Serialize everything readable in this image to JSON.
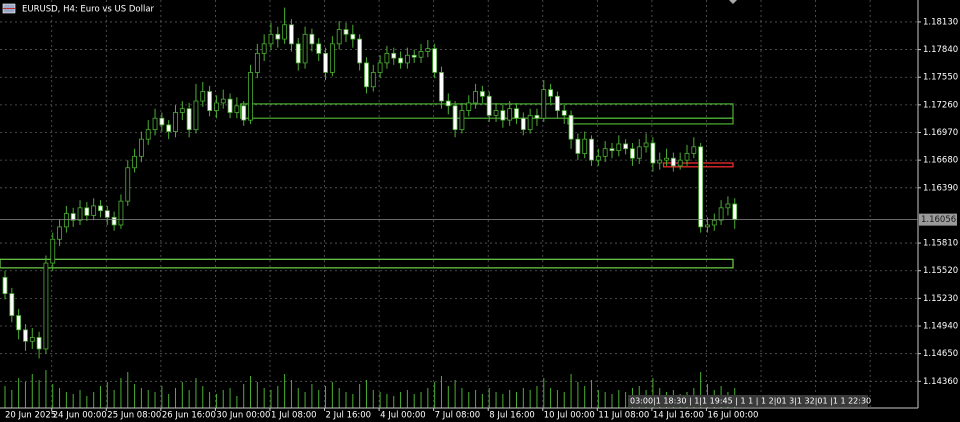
{
  "chart_data": {
    "type": "candlestick",
    "title": "EURUSD, H4:  Euro vs US Dollar",
    "annotation": "03:00|1 18:30 | 1|1 19:45 | 1 1 | 1 2|01 3|1 32|01 |1 1 22:30",
    "current_price": {
      "value": 1.16056,
      "label": "1.16056"
    },
    "bull_color": "#000000",
    "bear_color": "#ffffff",
    "wick_color": "#4caf34",
    "volume_color": "#4caf34",
    "grid": true,
    "grid_color": "#5a5a5a",
    "ylim": [
      1.1408,
      1.1836
    ],
    "yticks": [
      {
        "value": 1.1813,
        "label": "1.18130"
      },
      {
        "value": 1.1784,
        "label": "1.17840"
      },
      {
        "value": 1.1755,
        "label": "1.17550"
      },
      {
        "value": 1.1726,
        "label": "1.17260"
      },
      {
        "value": 1.1697,
        "label": "1.16970"
      },
      {
        "value": 1.1668,
        "label": "1.16680"
      },
      {
        "value": 1.1639,
        "label": "1.16390"
      },
      {
        "value": 1.1581,
        "label": "1.15810"
      },
      {
        "value": 1.1552,
        "label": "1.15520"
      },
      {
        "value": 1.1523,
        "label": "1.15230"
      },
      {
        "value": 1.1494,
        "label": "1.14940"
      },
      {
        "value": 1.1465,
        "label": "1.14650"
      },
      {
        "value": 1.1436,
        "label": "1.14360"
      }
    ],
    "categories": [
      "20 Jun 2025",
      null,
      null,
      null,
      null,
      null,
      null,
      "24 Jun 00:00",
      null,
      null,
      null,
      null,
      null,
      null,
      null,
      "25 Jun 08:00",
      null,
      null,
      null,
      null,
      null,
      null,
      null,
      "26 Jun 16:00",
      null,
      null,
      null,
      null,
      null,
      null,
      null,
      "30 Jun 00:00",
      null,
      null,
      null,
      null,
      null,
      null,
      null,
      "1 Jul 08:00",
      null,
      null,
      null,
      null,
      null,
      null,
      null,
      "2 Jul 16:00",
      null,
      null,
      null,
      null,
      null,
      null,
      null,
      "4 Jul 00:00",
      null,
      null,
      null,
      null,
      null,
      null,
      null,
      "7 Jul 08:00",
      null,
      null,
      null,
      null,
      null,
      null,
      null,
      "8 Jul 16:00",
      null,
      null,
      null,
      null,
      null,
      null,
      null,
      "10 Jul 00:00",
      null,
      null,
      null,
      null,
      null,
      null,
      null,
      "11 Jul 08:00",
      null,
      null,
      null,
      null,
      null,
      null,
      null,
      "14 Jul 16:00",
      null,
      null,
      null,
      null,
      null,
      null,
      null,
      "16 Jul 00:00",
      null,
      null,
      null,
      null
    ],
    "open": [
      1.1545,
      1.1528,
      1.1505,
      1.149,
      1.1478,
      1.1482,
      1.147,
      1.156,
      1.1585,
      1.1598,
      1.1612,
      1.1605,
      1.1618,
      1.161,
      1.162,
      1.1615,
      1.1608,
      1.16,
      1.1625,
      1.166,
      1.1672,
      1.169,
      1.17,
      1.1712,
      1.1705,
      1.1698,
      1.1718,
      1.1722,
      1.17,
      1.173,
      1.174,
      1.172,
      1.1728,
      1.1732,
      1.1718,
      1.1725,
      1.171,
      1.176,
      1.178,
      1.179,
      1.18,
      1.1795,
      1.181,
      1.179,
      1.177,
      1.18,
      1.179,
      1.178,
      1.176,
      1.179,
      1.1805,
      1.18,
      1.1795,
      1.177,
      1.1745,
      1.176,
      1.177,
      1.178,
      1.1775,
      1.177,
      1.1778,
      1.1776,
      1.1782,
      1.1785,
      1.176,
      1.173,
      1.1725,
      1.17,
      1.172,
      1.1728,
      1.174,
      1.1735,
      1.1715,
      1.172,
      1.171,
      1.1722,
      1.1712,
      1.17,
      1.1715,
      1.1712,
      1.1742,
      1.1735,
      1.172,
      1.1715,
      1.169,
      1.1675,
      1.169,
      1.1668,
      1.1672,
      1.168,
      1.1678,
      1.1685,
      1.168,
      1.167,
      1.1682,
      1.1686,
      1.1665,
      1.1668,
      1.167,
      1.1662,
      1.1668,
      1.1675,
      1.1682,
      1.1598,
      1.16,
      1.1605,
      1.1618,
      1.1622
    ],
    "high": [
      1.1552,
      1.1534,
      1.1512,
      1.1496,
      1.1492,
      1.1488,
      1.1568,
      1.1592,
      1.1606,
      1.162,
      1.1618,
      1.1626,
      1.1624,
      1.1628,
      1.1626,
      1.162,
      1.1614,
      1.1632,
      1.1668,
      1.168,
      1.1698,
      1.171,
      1.1722,
      1.1718,
      1.171,
      1.1726,
      1.173,
      1.1728,
      1.1748,
      1.175,
      1.1746,
      1.1736,
      1.1742,
      1.1738,
      1.1734,
      1.173,
      1.1768,
      1.179,
      1.18,
      1.1812,
      1.1808,
      1.1828,
      1.1816,
      1.1796,
      1.1808,
      1.1806,
      1.1796,
      1.1786,
      1.1798,
      1.1814,
      1.1812,
      1.181,
      1.18,
      1.1776,
      1.1768,
      1.1778,
      1.1788,
      1.1786,
      1.1782,
      1.1786,
      1.1784,
      1.179,
      1.1794,
      1.179,
      1.1766,
      1.1738,
      1.173,
      1.1728,
      1.1736,
      1.1748,
      1.1746,
      1.174,
      1.1728,
      1.1726,
      1.173,
      1.1728,
      1.1718,
      1.1722,
      1.1722,
      1.1752,
      1.1748,
      1.174,
      1.1726,
      1.172,
      1.1696,
      1.1698,
      1.1694,
      1.168,
      1.1688,
      1.1686,
      1.1694,
      1.169,
      1.1686,
      1.169,
      1.1696,
      1.1692,
      1.1676,
      1.168,
      1.1676,
      1.1676,
      1.1684,
      1.1692,
      1.1686,
      1.1608,
      1.1612,
      1.1626,
      1.163,
      1.1628
    ],
    "low": [
      1.1522,
      1.1498,
      1.148,
      1.1468,
      1.147,
      1.146,
      1.1465,
      1.1552,
      1.1578,
      1.1592,
      1.1598,
      1.16,
      1.1604,
      1.1605,
      1.1608,
      1.16,
      1.1594,
      1.1596,
      1.162,
      1.1655,
      1.1666,
      1.1684,
      1.1694,
      1.1698,
      1.169,
      1.1692,
      1.171,
      1.1692,
      1.1696,
      1.1724,
      1.1714,
      1.1712,
      1.1722,
      1.1712,
      1.1712,
      1.1704,
      1.1706,
      1.1754,
      1.1772,
      1.1784,
      1.1786,
      1.179,
      1.1782,
      1.1762,
      1.1764,
      1.1782,
      1.1772,
      1.1752,
      1.1756,
      1.1784,
      1.1792,
      1.1786,
      1.1762,
      1.1738,
      1.174,
      1.1754,
      1.1764,
      1.1768,
      1.1764,
      1.1764,
      1.177,
      1.177,
      1.1776,
      1.1754,
      1.1722,
      1.1716,
      1.1692,
      1.1696,
      1.1714,
      1.1722,
      1.1728,
      1.1708,
      1.1708,
      1.1702,
      1.1704,
      1.1706,
      1.1694,
      1.1696,
      1.1704,
      1.1708,
      1.1728,
      1.1712,
      1.1706,
      1.168,
      1.1668,
      1.167,
      1.1662,
      1.1662,
      1.1666,
      1.167,
      1.1672,
      1.1674,
      1.1662,
      1.1664,
      1.1676,
      1.1656,
      1.1658,
      1.1662,
      1.1656,
      1.1658,
      1.1662,
      1.167,
      1.1592,
      1.1592,
      1.1594,
      1.16,
      1.161,
      1.1596
    ],
    "close": [
      1.1528,
      1.1505,
      1.149,
      1.1478,
      1.1482,
      1.147,
      1.156,
      1.1585,
      1.1598,
      1.1612,
      1.1605,
      1.1618,
      1.161,
      1.162,
      1.1615,
      1.1608,
      1.16,
      1.1625,
      1.166,
      1.1672,
      1.169,
      1.17,
      1.1712,
      1.1705,
      1.1698,
      1.1718,
      1.1722,
      1.17,
      1.173,
      1.174,
      1.172,
      1.1728,
      1.1732,
      1.1718,
      1.1725,
      1.171,
      1.176,
      1.178,
      1.179,
      1.18,
      1.1795,
      1.181,
      1.179,
      1.177,
      1.18,
      1.179,
      1.178,
      1.176,
      1.179,
      1.1805,
      1.18,
      1.1795,
      1.177,
      1.1745,
      1.176,
      1.177,
      1.178,
      1.1775,
      1.177,
      1.1778,
      1.1776,
      1.1782,
      1.1785,
      1.176,
      1.173,
      1.1725,
      1.17,
      1.172,
      1.1728,
      1.174,
      1.1735,
      1.1715,
      1.172,
      1.171,
      1.1722,
      1.1712,
      1.17,
      1.1715,
      1.1712,
      1.1742,
      1.1735,
      1.172,
      1.1715,
      1.169,
      1.1675,
      1.169,
      1.1668,
      1.1672,
      1.168,
      1.1678,
      1.1685,
      1.168,
      1.167,
      1.1682,
      1.1686,
      1.1665,
      1.1668,
      1.167,
      1.1662,
      1.1668,
      1.1675,
      1.1682,
      1.1598,
      1.16,
      1.1605,
      1.1618,
      1.1622,
      1.1606
    ],
    "volume": [
      22,
      18,
      30,
      26,
      34,
      28,
      38,
      24,
      20,
      16,
      14,
      18,
      12,
      16,
      22,
      26,
      18,
      30,
      36,
      24,
      20,
      18,
      16,
      22,
      14,
      20,
      26,
      18,
      30,
      22,
      16,
      14,
      18,
      20,
      12,
      24,
      32,
      26,
      20,
      18,
      22,
      34,
      28,
      20,
      16,
      24,
      18,
      22,
      26,
      20,
      16,
      14,
      24,
      28,
      18,
      16,
      14,
      12,
      16,
      18,
      14,
      16,
      20,
      26,
      32,
      22,
      28,
      20,
      16,
      18,
      14,
      20,
      16,
      14,
      18,
      16,
      20,
      18,
      22,
      30,
      20,
      18,
      16,
      34,
      26,
      22,
      28,
      18,
      16,
      14,
      18,
      16,
      20,
      22,
      18,
      30,
      20,
      16,
      18,
      14,
      16,
      20,
      36,
      24,
      18,
      22,
      16,
      20
    ],
    "zones": [
      {
        "top": 1.1727,
        "bottom": 1.1712,
        "color": "#4caf34"
      },
      {
        "top": 1.1712,
        "bottom": 1.1706,
        "color": "#4caf34"
      },
      {
        "top": 1.1564,
        "bottom": 1.1555,
        "color": "#6fd34a"
      },
      {
        "top": 1.1665,
        "bottom": 1.1661,
        "color": "#ff3030"
      }
    ]
  }
}
